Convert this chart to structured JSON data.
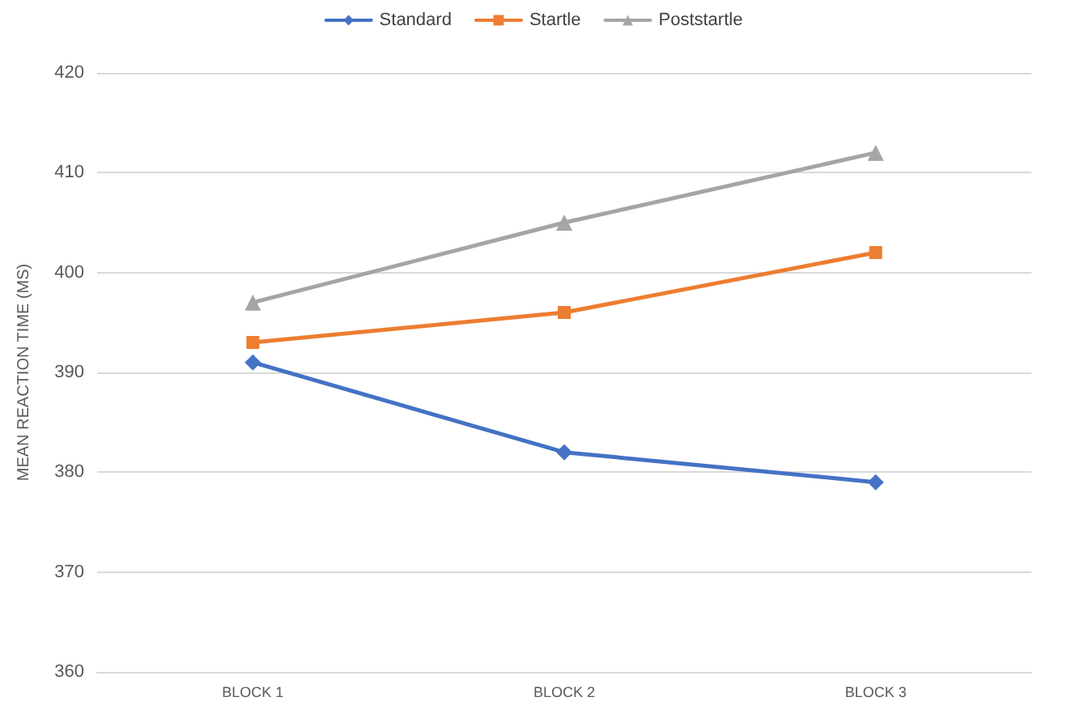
{
  "chart_data": {
    "type": "line",
    "ylabel": "MEAN REACTION TIME (MS)",
    "categories": [
      "BLOCK 1",
      "BLOCK 2",
      "BLOCK 3"
    ],
    "series": [
      {
        "name": "Standard",
        "color": "#4472c4",
        "marker": "diamond",
        "values": [
          391,
          382,
          379
        ]
      },
      {
        "name": "Startle",
        "color": "#ed7d31",
        "marker": "square",
        "values": [
          393,
          396,
          402
        ]
      },
      {
        "name": "Poststartle",
        "color": "#a5a5a5",
        "marker": "triangle",
        "values": [
          397,
          405,
          412
        ]
      }
    ],
    "ylim": [
      360,
      420
    ],
    "yticks": [
      360,
      370,
      380,
      390,
      400,
      410,
      420
    ],
    "grid": "y",
    "legend": "top"
  }
}
